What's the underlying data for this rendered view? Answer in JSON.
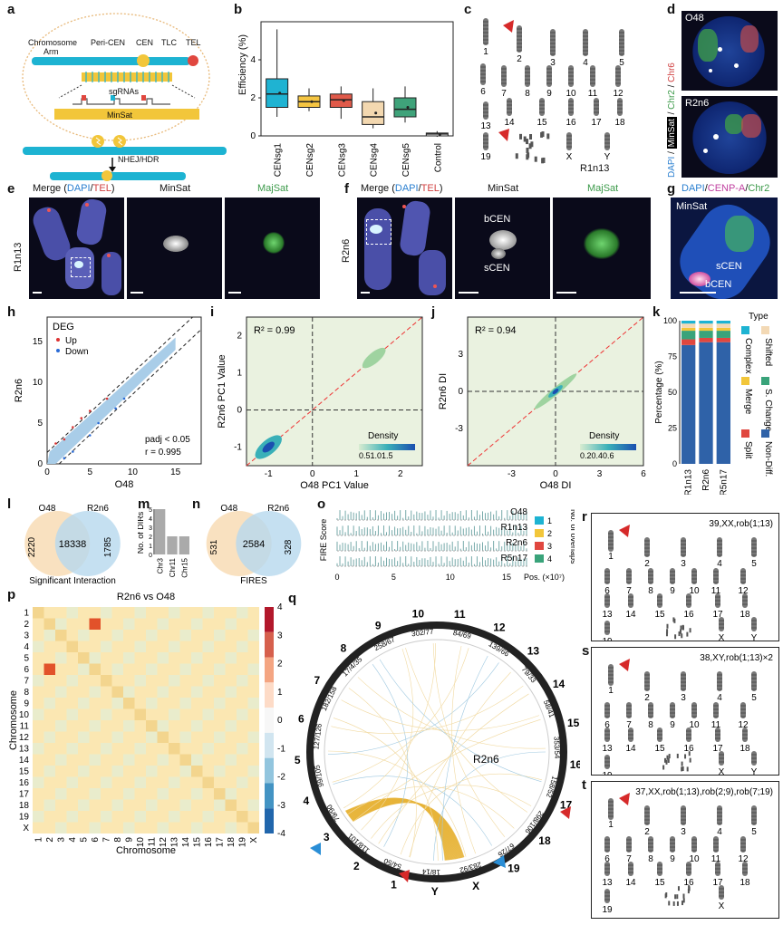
{
  "panel_letters": [
    "a",
    "b",
    "c",
    "d",
    "e",
    "f",
    "g",
    "h",
    "i",
    "j",
    "k",
    "l",
    "m",
    "n",
    "o",
    "p",
    "q",
    "r",
    "s",
    "t"
  ],
  "a": {
    "labels": [
      "Chromosome",
      "Arm",
      "Peri-CEN",
      "CEN",
      "TLC",
      "TEL",
      "sgRNAs",
      "MinSat",
      "NHEJ/HDR"
    ]
  },
  "b": {
    "chart_data": {
      "type": "box",
      "ylabel": "Efficiency (%)",
      "yticks": [
        "0",
        "2",
        "4"
      ],
      "categories": [
        "CENsg1",
        "CENsg2",
        "CENsg3",
        "CENsg4",
        "CENsg5",
        "Control"
      ],
      "boxes": [
        {
          "name": "CENsg1",
          "q1": 1.5,
          "median": 2.2,
          "q3": 3.0,
          "min": 1.0,
          "max": 5.6,
          "color": "#1fb3d2"
        },
        {
          "name": "CENsg2",
          "q1": 1.5,
          "median": 1.8,
          "q3": 2.1,
          "min": 1.3,
          "max": 2.5,
          "color": "#f5c542"
        },
        {
          "name": "CENsg3",
          "q1": 1.5,
          "median": 1.9,
          "q3": 2.2,
          "min": 0.9,
          "max": 2.6,
          "color": "#e05a4a"
        },
        {
          "name": "CENsg4",
          "q1": 0.6,
          "median": 1.0,
          "q3": 1.8,
          "min": 0.4,
          "max": 2.5,
          "color": "#f3d8b0"
        },
        {
          "name": "CENsg5",
          "q1": 1.0,
          "median": 1.4,
          "q3": 2.0,
          "min": 0.7,
          "max": 2.6,
          "color": "#3fa37a"
        },
        {
          "name": "Control",
          "q1": 0.0,
          "median": 0.1,
          "q3": 0.15,
          "min": -0.05,
          "max": 0.25,
          "color": "#ffffff"
        }
      ],
      "ylim": [
        0,
        6
      ]
    }
  },
  "c": {
    "numbers": [
      "1",
      "2",
      "3",
      "4",
      "5",
      "6",
      "7",
      "8",
      "9",
      "10",
      "11",
      "12",
      "13",
      "14",
      "15",
      "16",
      "17",
      "18",
      "19",
      "X",
      "Y"
    ],
    "name": "R1n13"
  },
  "d": {
    "cell1": "O48",
    "cell2": "R2n6",
    "side_dapi": "DAPI",
    "side_minsat": "MinSat",
    "side_chr2": "Chr2",
    "side_chr6": "Chr6"
  },
  "e": {
    "merge": "Merge (",
    "dapi": "DAPI",
    "slash": "/",
    "tel": "TEL",
    ")": ")",
    "minsat": "MinSat",
    "majsat": "MajSat",
    "side": "R1n13"
  },
  "f": {
    "merge": "Merge (",
    "dapi": "DAPI",
    "slash": "/",
    "tel": "TEL",
    ")": ")",
    "minsat": "MinSat",
    "majsat": "MajSat",
    "side": "R2n6",
    "bcen": "bCEN",
    "scen": "sCEN"
  },
  "g": {
    "dapi": "DAPI",
    "slash1": "/",
    "cenpa": "CENP-A",
    "slash2": "/",
    "chr2": "Chr2",
    "minsat": "MinSat",
    "scen": "sCEN",
    "bcen": "bCEN"
  },
  "h": {
    "chart_data": {
      "type": "scatter",
      "xlabel": "O48",
      "ylabel": "R2n6",
      "xticks": [
        "0",
        "5",
        "10",
        "15"
      ],
      "yticks": [
        "0",
        "5",
        "10",
        "15"
      ],
      "legend_title": "DEG",
      "legend": [
        "Up",
        "Down"
      ],
      "padj": "padj  < 0.05",
      "r": "r = 0.995"
    }
  },
  "i": {
    "chart_data": {
      "type": "density",
      "xlabel": "O48 PC1 Value",
      "ylabel": "R2n6 PC1 Value",
      "xticks": [
        "-1",
        "0",
        "1",
        "2"
      ],
      "yticks": [
        "-1",
        "0",
        "1",
        "2"
      ],
      "r2": "R² = 0.99",
      "density_label": "Density",
      "density_ticks": "0.51.01.5"
    }
  },
  "j": {
    "chart_data": {
      "type": "density",
      "xlabel": "O48 DI",
      "ylabel": "R2n6 DI",
      "xticks": [
        "-3",
        "0",
        "3",
        "6"
      ],
      "yticks": [
        "-3",
        "0",
        "3"
      ],
      "r2": "R² = 0.94",
      "density_label": "Density",
      "density_ticks": "0.20.40.6"
    }
  },
  "k": {
    "chart_data": {
      "type": "bar",
      "ylabel": "Percentage (%)",
      "yticks": [
        "0",
        "25",
        "50",
        "75",
        "100"
      ],
      "categories": [
        "R1n13",
        "R2n6",
        "R5n17"
      ],
      "series": [
        {
          "name": "Non-Diff.",
          "values": [
            83,
            85,
            85
          ],
          "color": "#2f62a8"
        },
        {
          "name": "Split",
          "values": [
            4,
            3,
            3
          ],
          "color": "#e0473f"
        },
        {
          "name": "S. Change",
          "values": [
            6,
            5,
            5
          ],
          "color": "#39a37a"
        },
        {
          "name": "Merge",
          "values": [
            2,
            2,
            2
          ],
          "color": "#f2c63a"
        },
        {
          "name": "Shifted",
          "values": [
            3,
            3,
            3
          ],
          "color": "#f3d9b5"
        },
        {
          "name": "Complex",
          "values": [
            2,
            2,
            2
          ],
          "color": "#1db3d2"
        }
      ],
      "legend_title": "Type",
      "legend_labels": [
        "Complex",
        "Shifted",
        "Merge",
        "S. Change",
        "Split",
        "Non-Diff."
      ]
    }
  },
  "l": {
    "left": "O48",
    "right": "R2n6",
    "a": "2220",
    "ab": "18338",
    "b": "1785",
    "caption": "Significant Interaction"
  },
  "m": {
    "chart_data": {
      "type": "bar",
      "ylabel": "No. of DIRs",
      "yticks": [
        "0",
        "1",
        "2",
        "3",
        "4",
        "5"
      ],
      "categories": [
        "Chr3",
        "Chr11",
        "Chr15"
      ],
      "values": [
        5,
        2,
        2
      ],
      "ylim": [
        0,
        5
      ]
    }
  },
  "n": {
    "left": "O48",
    "right": "R2n6",
    "a": "531",
    "ab": "2584",
    "b": "328",
    "caption": "FIRES"
  },
  "o": {
    "ylabel": "FIRE Score",
    "rows": [
      "O48",
      "R1n13",
      "R2n6",
      "R5n17"
    ],
    "xticks": [
      "0",
      "5",
      "10",
      "15"
    ],
    "xunit": "Pos. (×10⁷)",
    "legend_title": "No. of overlaps",
    "legend": [
      "1",
      "2",
      "3",
      "4"
    ],
    "legend_colors": [
      "#1db3d2",
      "#f2c63a",
      "#e0473f",
      "#39a37a"
    ]
  },
  "p": {
    "title": "R2n6 vs O48",
    "ylabel": "Chromosome",
    "xlabel": "Chromosome",
    "chroms": [
      "1",
      "2",
      "3",
      "4",
      "5",
      "6",
      "7",
      "8",
      "9",
      "10",
      "11",
      "12",
      "13",
      "14",
      "15",
      "16",
      "17",
      "18",
      "19",
      "X"
    ],
    "colorbar": [
      "4",
      "3",
      "2",
      "1",
      "0",
      "-1",
      "-2",
      "-3",
      "-4"
    ]
  },
  "q": {
    "center": "R2n6",
    "chroms": [
      "1",
      "2",
      "3",
      "4",
      "5",
      "6",
      "7",
      "8",
      "9",
      "10",
      "11",
      "12",
      "13",
      "14",
      "15",
      "16",
      "17",
      "18",
      "19",
      "X",
      "Y"
    ],
    "ticks": [
      "54/50",
      "118/101",
      "79/90",
      "99/105",
      "127/126",
      "182/158",
      "17/4/35",
      "258/67",
      "302/77",
      "84/69",
      "139/66",
      "79/33",
      "58/41",
      "353/54",
      "158/52",
      "298/106",
      "67/26",
      "283/92",
      "18/14"
    ]
  },
  "r": {
    "karyotype": "39,XX,rob(1;13)",
    "numbers": [
      "1",
      "2",
      "3",
      "4",
      "5",
      "6",
      "7",
      "8",
      "9",
      "10",
      "11",
      "12",
      "13",
      "14",
      "15",
      "16",
      "17",
      "18",
      "19",
      "X",
      "Y"
    ]
  },
  "s": {
    "karyotype": "38,XY,rob(1;13)×2",
    "numbers": [
      "1",
      "2",
      "3",
      "4",
      "5",
      "6",
      "7",
      "8",
      "9",
      "10",
      "11",
      "12",
      "13",
      "14",
      "15",
      "16",
      "17",
      "18",
      "19",
      "X",
      "Y"
    ]
  },
  "t": {
    "karyotype": "37,XX,rob(1;13),rob(2;9),rob(7;19)",
    "numbers": [
      "1",
      "2",
      "3",
      "4",
      "5",
      "6",
      "7",
      "8",
      "9",
      "10",
      "11",
      "12",
      "13",
      "14",
      "15",
      "16",
      "17",
      "18",
      "19",
      "X"
    ]
  }
}
